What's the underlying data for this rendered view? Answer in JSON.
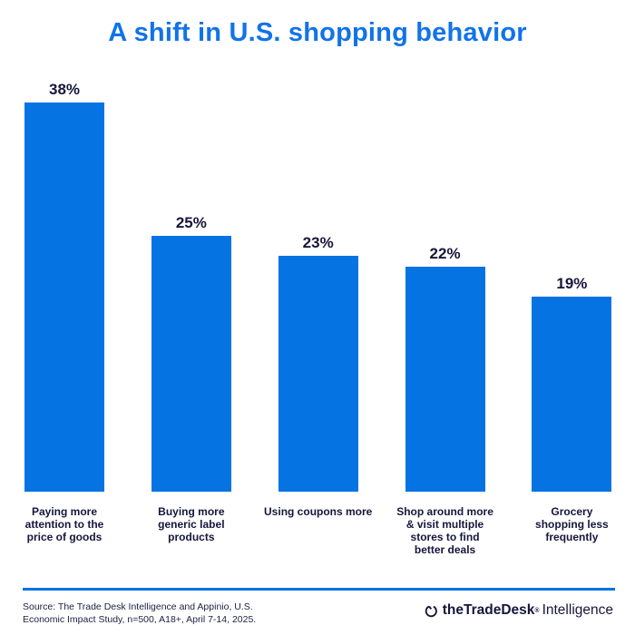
{
  "page": {
    "title": "A shift in U.S. shopping behavior"
  },
  "colors": {
    "title_blue": "#1173e8",
    "bar_blue": "#0673e2",
    "text_navy": "#16163c",
    "source_navy": "#1e1e40",
    "divider_blue": "#0673e2"
  },
  "chart_data": {
    "type": "bar",
    "title": "A shift in U.S. shopping behavior",
    "categories": [
      "Paying more attention to the price of goods",
      "Buying more generic label products",
      "Using coupons more",
      "Shop around more & visit multiple stores to find better deals",
      "Grocery shopping less frequently"
    ],
    "category_lines": [
      [
        "Paying more",
        "attention to the",
        "price of goods"
      ],
      [
        "Buying more",
        "generic label",
        "products"
      ],
      [
        "Using coupons more"
      ],
      [
        "Shop around more",
        "& visit multiple",
        "stores to find",
        "better deals"
      ],
      [
        "Grocery",
        "shopping less",
        "frequently"
      ]
    ],
    "values": [
      38,
      25,
      23,
      22,
      19
    ],
    "value_labels": [
      "38%",
      "25%",
      "23%",
      "22%",
      "19%"
    ],
    "xlabel": "",
    "ylabel": "",
    "ylim": [
      0,
      38
    ],
    "grid": false,
    "legend": false,
    "data_labels_position": "above-bars"
  },
  "footer": {
    "source_line1": "Source: The Trade Desk Intelligence and Appinio, U.S.",
    "source_line2": "Economic Impact Study, n=500, A18+, April 7-14, 2025.",
    "logo": {
      "icon": "tradedesk-circle-mark",
      "brand": "theTradeDesk",
      "registered": "®",
      "suffix": "Intelligence"
    }
  }
}
